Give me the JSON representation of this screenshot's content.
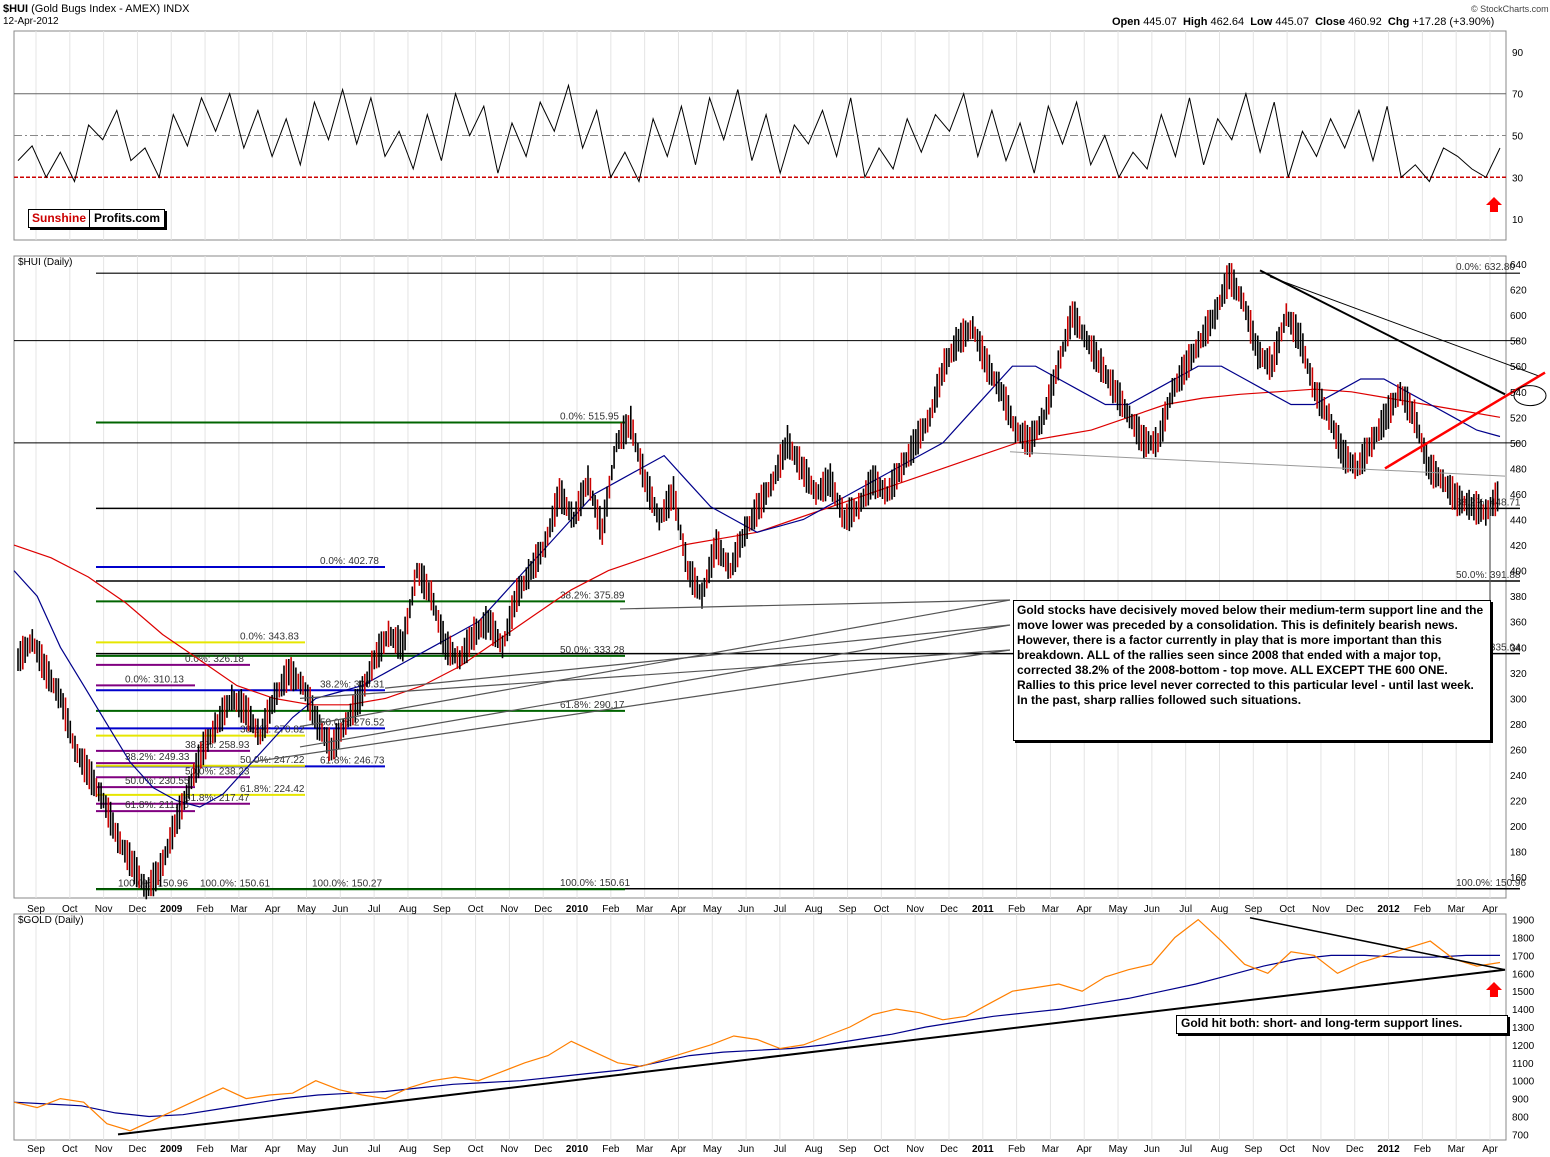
{
  "header": {
    "symbol": "$HUI",
    "name": "(Gold Bugs Index - AMEX)",
    "exchange": "INDX",
    "date": "12-Apr-2012",
    "open_label": "Open",
    "open": "445.07",
    "high_label": "High",
    "high": "462.64",
    "low_label": "Low",
    "low": "445.07",
    "close_label": "Close",
    "close": "460.92",
    "chg_label": "Chg",
    "chg": "+17.28 (+3.90%)",
    "brand": "© StockCharts.com"
  },
  "logo": {
    "part1": "Sunshine",
    "part2": "Profits.com"
  },
  "annotation_main": "Gold stocks have decisively moved below their medium-term support line and the move lower was preceded by a consolidation. This is definitely bearish news. However, there is a factor currently in play that is more important than this breakdown. ALL of the rallies seen since 2008 that ended with a major top, corrected 38.2% of the 2008-bottom - top move. ALL EXCEPT THE 600 ONE. Rallies to this price level never corrected to this particular level - until last week. In the past, sharp rallies followed such situations.",
  "annotation_gold": "Gold hit both: short- and long-term support lines.",
  "colors": {
    "price_down": "#cc0000",
    "price_up": "#000000",
    "ma50": "#00008b",
    "ma200": "#dd0000",
    "gold_line": "#ff7f00",
    "trendline_red": "#ff0000"
  },
  "chart_data": [
    {
      "panel": "rsi",
      "type": "line",
      "title": "",
      "y_ticks": [
        10,
        30,
        50,
        70,
        90
      ],
      "ylim": [
        0,
        100
      ],
      "reference_lines": [
        30,
        50,
        70
      ],
      "series": [
        {
          "values": [
            38,
            45,
            30,
            42,
            28,
            55,
            48,
            62,
            38,
            44,
            30,
            60,
            45,
            68,
            52,
            70,
            44,
            62,
            40,
            58,
            36,
            66,
            48,
            72,
            46,
            68,
            40,
            52,
            34,
            60,
            38,
            70,
            50,
            64,
            32,
            56,
            40,
            66,
            52,
            74,
            44,
            62,
            30,
            42,
            28,
            58,
            40,
            64,
            36,
            68,
            48,
            72,
            38,
            60,
            32,
            55,
            46,
            62,
            40,
            68,
            30,
            44,
            34,
            58,
            42,
            60,
            52,
            70,
            40,
            62,
            38,
            56,
            32,
            64,
            46,
            66,
            36,
            50,
            30,
            42,
            34,
            60,
            40,
            68,
            36,
            58,
            48,
            70,
            42,
            66,
            30,
            52,
            40,
            58,
            44,
            62,
            38,
            64,
            30,
            36,
            28,
            44,
            40,
            34,
            30,
            44
          ]
        }
      ],
      "markers": [
        {
          "type": "arrow-up",
          "label": ""
        }
      ]
    },
    {
      "panel": "price",
      "type": "candlestick",
      "title": "$HUI (Daily)",
      "x_ticks": [
        "Sep",
        "Oct",
        "Nov",
        "Dec",
        "2009",
        "Feb",
        "Mar",
        "Apr",
        "May",
        "Jun",
        "Jul",
        "Aug",
        "Sep",
        "Oct",
        "Nov",
        "Dec",
        "2010",
        "Feb",
        "Mar",
        "Apr",
        "May",
        "Jun",
        "Jul",
        "Aug",
        "Sep",
        "Oct",
        "Nov",
        "Dec",
        "2011",
        "Feb",
        "Mar",
        "Apr",
        "May",
        "Jun",
        "Jul",
        "Aug",
        "Sep",
        "Oct",
        "Nov",
        "Dec",
        "2012",
        "Feb",
        "Mar",
        "Apr"
      ],
      "y_ticks": [
        160,
        180,
        200,
        220,
        240,
        260,
        280,
        300,
        320,
        340,
        360,
        380,
        400,
        420,
        440,
        460,
        480,
        500,
        520,
        540,
        560,
        580,
        600,
        620,
        640
      ],
      "ylim": [
        150,
        640
      ],
      "series": [
        {
          "name": "price",
          "values": [
            330,
            345,
            320,
            300,
            260,
            240,
            220,
            190,
            170,
            150,
            165,
            200,
            230,
            260,
            280,
            300,
            290,
            270,
            300,
            320,
            310,
            280,
            260,
            280,
            300,
            330,
            350,
            340,
            400,
            380,
            340,
            330,
            350,
            360,
            340,
            380,
            400,
            420,
            460,
            440,
            470,
            430,
            500,
            515,
            470,
            440,
            460,
            400,
            380,
            420,
            400,
            430,
            450,
            470,
            500,
            480,
            460,
            470,
            440,
            450,
            470,
            460,
            480,
            500,
            520,
            560,
            580,
            590,
            560,
            540,
            510,
            500,
            520,
            560,
            600,
            580,
            560,
            540,
            520,
            500,
            500,
            540,
            560,
            580,
            600,
            630,
            610,
            570,
            560,
            600,
            580,
            540,
            520,
            490,
            480,
            500,
            520,
            540,
            520,
            480,
            470,
            455,
            450,
            445,
            460
          ]
        },
        {
          "name": "MA50",
          "values": [
            400,
            380,
            340,
            310,
            280,
            250,
            230,
            220,
            215,
            225,
            245,
            265,
            285,
            300,
            305,
            310,
            320,
            330,
            340,
            350,
            360,
            380,
            400,
            420,
            440,
            460,
            470,
            480,
            490,
            470,
            450,
            440,
            430,
            435,
            440,
            450,
            460,
            470,
            480,
            490,
            500,
            520,
            540,
            560,
            560,
            550,
            540,
            530,
            530,
            540,
            550,
            560,
            560,
            550,
            540,
            530,
            530,
            540,
            550,
            550,
            540,
            530,
            520,
            510,
            505
          ]
        },
        {
          "name": "MA200",
          "values": [
            420,
            410,
            395,
            375,
            350,
            330,
            310,
            300,
            295,
            295,
            300,
            310,
            325,
            345,
            365,
            385,
            400,
            410,
            420,
            425,
            430,
            440,
            450,
            460,
            470,
            480,
            490,
            500,
            505,
            510,
            520,
            530,
            535,
            538,
            540,
            542,
            540,
            535,
            530,
            525,
            520
          ]
        }
      ],
      "levels": [
        {
          "label": "0.0%: 632.80"
        },
        {
          "label": "38.2%: 448.71"
        },
        {
          "label": "50.0%: 391.88"
        },
        {
          "label": "61.8%: 335.04"
        },
        {
          "label": "100.0%: 150.96"
        },
        {
          "label": "0.0%: 515.95"
        },
        {
          "label": "38.2%: 375.89"
        },
        {
          "label": "50.0%: 333.28"
        },
        {
          "label": "61.8%: 290.17"
        },
        {
          "label": "100.0%: 150.61"
        },
        {
          "label": "0.0%: 402.78"
        },
        {
          "label": "38.2%: 306.31"
        },
        {
          "label": "50.0%: 276.52"
        },
        {
          "label": "61.8%: 246.73"
        },
        {
          "label": "0.0%: 343.83"
        },
        {
          "label": "38.2%: 270.82"
        },
        {
          "label": "50.0%: 247.22"
        },
        {
          "label": "61.8%: 224.42"
        },
        {
          "label": "0.0%: 326.18"
        },
        {
          "label": "38.2%: 258.93"
        },
        {
          "label": "50.0%: 238.23"
        },
        {
          "label": "61.8%: 217.47"
        },
        {
          "label": "0.0%: 310.13"
        },
        {
          "label": "38.2%: 249.33"
        },
        {
          "label": "50.0%: 230.55"
        },
        {
          "label": "61.8%: 211.76"
        },
        {
          "label": "100.0%: 150.96"
        },
        {
          "label": "100.0%: 150.61"
        },
        {
          "label": "100.0%: 150.27"
        }
      ]
    },
    {
      "panel": "gold",
      "type": "line",
      "title": "$GOLD (Daily)",
      "x_ticks": [
        "Sep",
        "Oct",
        "Nov",
        "Dec",
        "2009",
        "Feb",
        "Mar",
        "Apr",
        "May",
        "Jun",
        "Jul",
        "Aug",
        "Sep",
        "Oct",
        "Nov",
        "Dec",
        "2010",
        "Feb",
        "Mar",
        "Apr",
        "May",
        "Jun",
        "Jul",
        "Aug",
        "Sep",
        "Oct",
        "Nov",
        "Dec",
        "2011",
        "Feb",
        "Mar",
        "Apr",
        "May",
        "Jun",
        "Jul",
        "Aug",
        "Sep",
        "Oct",
        "Nov",
        "Dec",
        "2012",
        "Feb",
        "Mar",
        "Apr"
      ],
      "y_ticks": [
        700,
        800,
        900,
        1000,
        1100,
        1200,
        1300,
        1400,
        1500,
        1600,
        1700,
        1800,
        1900
      ],
      "ylim": [
        680,
        1920
      ],
      "series": [
        {
          "name": "gold",
          "values": [
            880,
            850,
            900,
            880,
            760,
            720,
            780,
            840,
            900,
            960,
            900,
            920,
            930,
            1000,
            950,
            920,
            900,
            960,
            1000,
            1020,
            1000,
            1050,
            1100,
            1140,
            1220,
            1160,
            1100,
            1080,
            1120,
            1160,
            1200,
            1250,
            1230,
            1180,
            1200,
            1250,
            1300,
            1370,
            1400,
            1380,
            1340,
            1360,
            1430,
            1500,
            1520,
            1540,
            1500,
            1580,
            1620,
            1650,
            1800,
            1900,
            1780,
            1650,
            1600,
            1720,
            1700,
            1600,
            1660,
            1700,
            1740,
            1780,
            1680,
            1640,
            1660
          ]
        },
        {
          "name": "MA",
          "values": [
            880,
            870,
            860,
            820,
            800,
            810,
            840,
            870,
            900,
            920,
            930,
            940,
            960,
            980,
            990,
            1000,
            1020,
            1040,
            1060,
            1100,
            1140,
            1160,
            1170,
            1180,
            1200,
            1230,
            1260,
            1300,
            1330,
            1360,
            1380,
            1400,
            1430,
            1460,
            1500,
            1540,
            1590,
            1640,
            1680,
            1700,
            1700,
            1690,
            1690,
            1700,
            1700
          ]
        }
      ],
      "markers": [
        {
          "type": "arrow-up",
          "label": ""
        }
      ]
    }
  ]
}
